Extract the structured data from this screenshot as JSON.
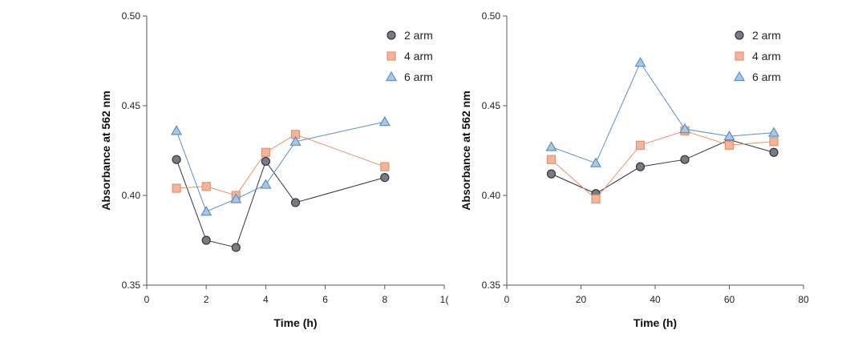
{
  "chart_data": [
    {
      "type": "line",
      "xlabel": "Time (h)",
      "ylabel": "Absorbance at 562 nm",
      "xlim": [
        0,
        10
      ],
      "ylim": [
        0.35,
        0.5
      ],
      "x_ticks": [
        "0",
        "2",
        "4",
        "6",
        "8",
        "1("
      ],
      "y_ticks": [
        "0.35",
        "0.40",
        "0.45",
        "0.50"
      ],
      "legend_position": "top-right",
      "grid": false,
      "series": [
        {
          "name": "2 arm",
          "marker": "circle",
          "color": "#333344",
          "fill": "#7a7a80",
          "x": [
            1,
            2,
            3,
            4,
            5,
            8
          ],
          "y": [
            0.42,
            0.375,
            0.371,
            0.419,
            0.396,
            0.41
          ]
        },
        {
          "name": "4 arm",
          "marker": "square",
          "color": "#e8906a",
          "fill": "#f2b49a",
          "x": [
            1,
            2,
            3,
            4,
            5,
            8
          ],
          "y": [
            0.404,
            0.405,
            0.4,
            0.424,
            0.434,
            0.416
          ]
        },
        {
          "name": "6 arm",
          "marker": "triangle",
          "color": "#5b8fc4",
          "fill": "#a9c8e6",
          "x": [
            1,
            2,
            3,
            4,
            5,
            8
          ],
          "y": [
            0.436,
            0.391,
            0.398,
            0.406,
            0.43,
            0.441
          ]
        }
      ]
    },
    {
      "type": "line",
      "xlabel": "Time (h)",
      "ylabel": "Absorbance at 562 nm",
      "xlim": [
        0,
        80
      ],
      "ylim": [
        0.35,
        0.5
      ],
      "x_ticks": [
        "0",
        "20",
        "40",
        "60",
        "80"
      ],
      "y_ticks": [
        "0.35",
        "0.40",
        "0.45",
        "0.50"
      ],
      "legend_position": "top-right",
      "grid": false,
      "series": [
        {
          "name": "2 arm",
          "marker": "circle",
          "color": "#333344",
          "fill": "#7a7a80",
          "x": [
            12,
            24,
            36,
            48,
            60,
            72
          ],
          "y": [
            0.412,
            0.401,
            0.416,
            0.42,
            0.431,
            0.424
          ]
        },
        {
          "name": "4 arm",
          "marker": "square",
          "color": "#e8906a",
          "fill": "#f2b49a",
          "x": [
            12,
            24,
            36,
            48,
            60,
            72
          ],
          "y": [
            0.42,
            0.398,
            0.428,
            0.436,
            0.428,
            0.43
          ]
        },
        {
          "name": "6 arm",
          "marker": "triangle",
          "color": "#5b8fc4",
          "fill": "#a9c8e6",
          "x": [
            12,
            24,
            36,
            48,
            60,
            72
          ],
          "y": [
            0.427,
            0.418,
            0.474,
            0.437,
            0.433,
            0.435
          ]
        }
      ]
    }
  ]
}
